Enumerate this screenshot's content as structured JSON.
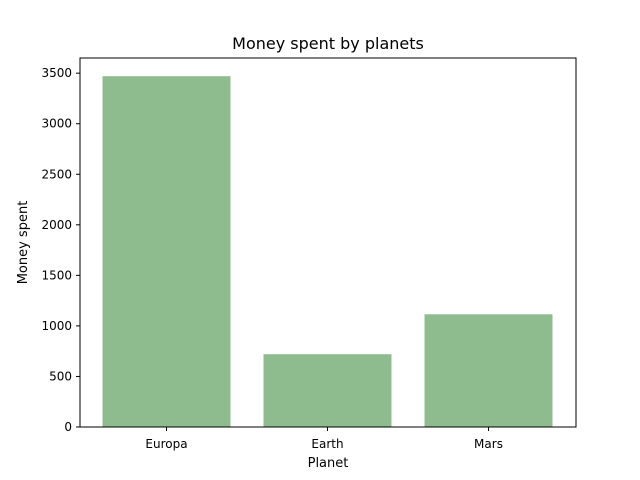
{
  "chart_data": {
    "type": "bar",
    "title": "Money spent by planets",
    "xlabel": "Planet",
    "ylabel": "Money spent",
    "categories": [
      "Europa",
      "Earth",
      "Mars"
    ],
    "values": [
      3470,
      720,
      1115
    ],
    "ylim": [
      0,
      3650
    ],
    "yticks": [
      0,
      500,
      1000,
      1500,
      2000,
      2500,
      3000,
      3500
    ],
    "bar_color": "#8fbc8f",
    "grid": false,
    "legend": "none"
  }
}
